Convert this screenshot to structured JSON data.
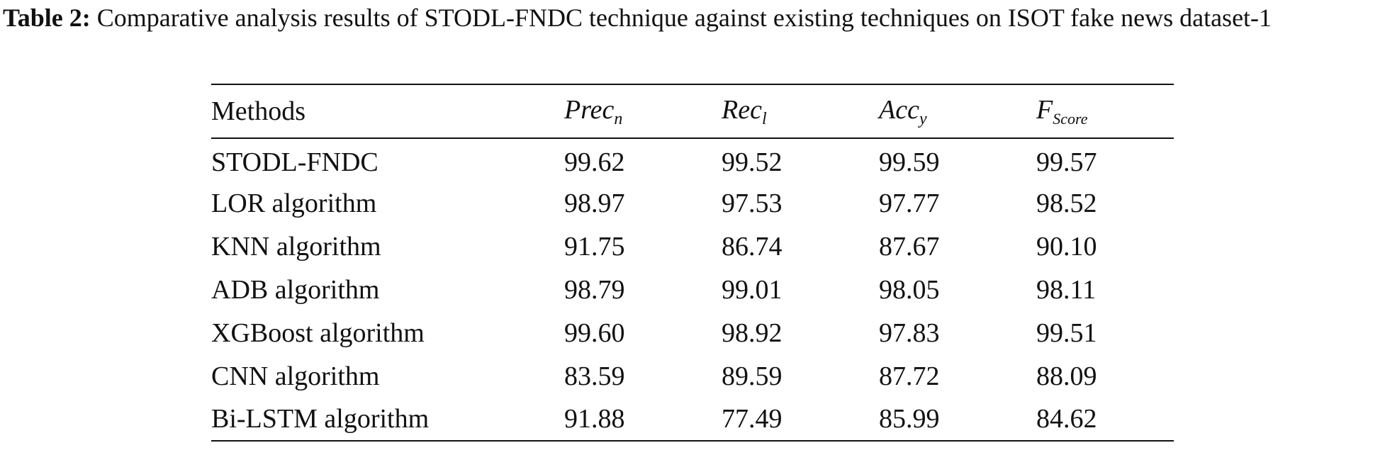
{
  "caption": {
    "label": "Table 2:",
    "text": "Comparative analysis results of STODL-FNDC technique against existing techniques on ISOT fake news dataset-1"
  },
  "table": {
    "headers": {
      "method": "Methods",
      "prec_main": "Prec",
      "prec_sub": "n",
      "rec_main": "Rec",
      "rec_sub": "l",
      "acc_main": "Acc",
      "acc_sub": "y",
      "f_main": "F",
      "f_sub": "Score"
    },
    "rows": [
      {
        "method": "STODL-FNDC",
        "prec": "99.62",
        "rec": "99.52",
        "acc": "99.59",
        "f": "99.57"
      },
      {
        "method": "LOR algorithm",
        "prec": "98.97",
        "rec": "97.53",
        "acc": "97.77",
        "f": "98.52"
      },
      {
        "method": "KNN algorithm",
        "prec": "91.75",
        "rec": "86.74",
        "acc": "87.67",
        "f": "90.10"
      },
      {
        "method": "ADB algorithm",
        "prec": "98.79",
        "rec": "99.01",
        "acc": "98.05",
        "f": "98.11"
      },
      {
        "method": "XGBoost algorithm",
        "prec": "99.60",
        "rec": "98.92",
        "acc": "97.83",
        "f": "99.51"
      },
      {
        "method": "CNN algorithm",
        "prec": "83.59",
        "rec": "89.59",
        "acc": "87.72",
        "f": "88.09"
      },
      {
        "method": "Bi-LSTM algorithm",
        "prec": "91.88",
        "rec": "77.49",
        "acc": "85.99",
        "f": "84.62"
      }
    ]
  }
}
